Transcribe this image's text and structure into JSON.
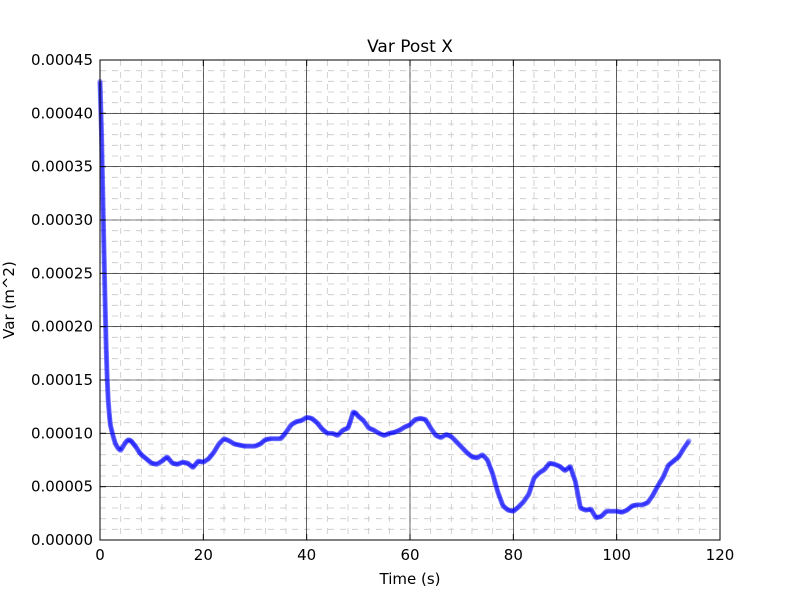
{
  "chart_data": {
    "type": "scatter",
    "title": "Var Post X",
    "xlabel": "Time (s)",
    "ylabel": "Var (m^2)",
    "xlim": [
      0,
      120
    ],
    "ylim": [
      0,
      0.00045
    ],
    "xticks": [
      0,
      20,
      40,
      60,
      80,
      100,
      120
    ],
    "xtick_labels": [
      "0",
      "20",
      "40",
      "60",
      "80",
      "100",
      "120"
    ],
    "yticks": [
      0,
      5e-05,
      0.0001,
      0.00015,
      0.0002,
      0.00025,
      0.0003,
      0.00035,
      0.0004,
      0.00045
    ],
    "ytick_labels": [
      "0.00000",
      "0.00005",
      "0.00010",
      "0.00015",
      "0.00020",
      "0.00025",
      "0.00030",
      "0.00035",
      "0.00040",
      "0.00045"
    ],
    "grid": true,
    "series": [
      {
        "color": "#0000ff",
        "points": [
          [
            0.0,
            0.00043
          ],
          [
            0.3,
            0.00038
          ],
          [
            0.6,
            0.00031
          ],
          [
            0.8,
            0.000265
          ],
          [
            1.0,
            0.00022
          ],
          [
            1.2,
            0.00018
          ],
          [
            1.4,
            0.00015
          ],
          [
            1.6,
            0.00013
          ],
          [
            1.8,
            0.000118
          ],
          [
            2.0,
            0.000108
          ],
          [
            2.5,
            9.8e-05
          ],
          [
            3.0,
            9e-05
          ],
          [
            3.5,
            8.6e-05
          ],
          [
            4.0,
            8.4e-05
          ],
          [
            4.5,
            8.8e-05
          ],
          [
            5.0,
            9.2e-05
          ],
          [
            5.5,
            9.4e-05
          ],
          [
            6.0,
            9.3e-05
          ],
          [
            6.5,
            9e-05
          ],
          [
            7.0,
            8.7e-05
          ],
          [
            7.5,
            8.3e-05
          ],
          [
            8.0,
            8e-05
          ],
          [
            8.5,
            7.8e-05
          ],
          [
            9.0,
            7.6e-05
          ],
          [
            9.5,
            7.4e-05
          ],
          [
            10.0,
            7.2e-05
          ],
          [
            11.0,
            7.1e-05
          ],
          [
            12.0,
            7.4e-05
          ],
          [
            13.0,
            7.8e-05
          ],
          [
            14.0,
            7.2e-05
          ],
          [
            15.0,
            7.1e-05
          ],
          [
            16.0,
            7.3e-05
          ],
          [
            17.0,
            7.2e-05
          ],
          [
            18.0,
            6.8e-05
          ],
          [
            19.0,
            7.4e-05
          ],
          [
            20.0,
            7.3e-05
          ],
          [
            21.0,
            7.6e-05
          ],
          [
            22.0,
            8.2e-05
          ],
          [
            23.0,
            9e-05
          ],
          [
            24.0,
            9.5e-05
          ],
          [
            25.0,
            9.3e-05
          ],
          [
            26.0,
            9e-05
          ],
          [
            27.0,
            8.9e-05
          ],
          [
            28.0,
            8.8e-05
          ],
          [
            29.0,
            8.8e-05
          ],
          [
            30.0,
            8.8e-05
          ],
          [
            31.0,
            9e-05
          ],
          [
            32.0,
            9.4e-05
          ],
          [
            33.0,
            9.5e-05
          ],
          [
            34.0,
            9.5e-05
          ],
          [
            35.0,
            9.5e-05
          ],
          [
            36.0,
            0.000101
          ],
          [
            37.0,
            0.000108
          ],
          [
            38.0,
            0.000111
          ],
          [
            39.0,
            0.000112
          ],
          [
            40.0,
            0.000115
          ],
          [
            41.0,
            0.000114
          ],
          [
            42.0,
            0.00011
          ],
          [
            43.0,
            0.000104
          ],
          [
            44.0,
            0.0001
          ],
          [
            45.0,
            0.0001
          ],
          [
            46.0,
            9.8e-05
          ],
          [
            47.0,
            0.000103
          ],
          [
            48.0,
            0.000105
          ],
          [
            48.5,
            0.000112
          ],
          [
            49.0,
            0.00012
          ],
          [
            49.5,
            0.000119
          ],
          [
            50.0,
            0.000116
          ],
          [
            51.0,
            0.000112
          ],
          [
            52.0,
            0.000105
          ],
          [
            53.0,
            0.000103
          ],
          [
            54.0,
            0.0001
          ],
          [
            55.0,
            9.8e-05
          ],
          [
            56.0,
            0.0001
          ],
          [
            57.0,
            0.000101
          ],
          [
            58.0,
            0.000103
          ],
          [
            59.0,
            0.000106
          ],
          [
            60.0,
            0.000108
          ],
          [
            61.0,
            0.000113
          ],
          [
            62.0,
            0.000114
          ],
          [
            63.0,
            0.000113
          ],
          [
            64.0,
            0.000105
          ],
          [
            65.0,
            9.8e-05
          ],
          [
            66.0,
            9.6e-05
          ],
          [
            67.0,
            9.9e-05
          ],
          [
            68.0,
            9.7e-05
          ],
          [
            69.0,
            9.2e-05
          ],
          [
            70.0,
            8.7e-05
          ],
          [
            71.0,
            8.2e-05
          ],
          [
            72.0,
            7.8e-05
          ],
          [
            73.0,
            7.7e-05
          ],
          [
            74.0,
            8e-05
          ],
          [
            75.0,
            7.5e-05
          ],
          [
            76.0,
            6.2e-05
          ],
          [
            77.0,
            4.5e-05
          ],
          [
            78.0,
            3.2e-05
          ],
          [
            79.0,
            2.8e-05
          ],
          [
            80.0,
            2.7e-05
          ],
          [
            81.0,
            3.1e-05
          ],
          [
            82.0,
            3.6e-05
          ],
          [
            83.0,
            4.3e-05
          ],
          [
            84.0,
            5.8e-05
          ],
          [
            85.0,
            6.3e-05
          ],
          [
            86.0,
            6.6e-05
          ],
          [
            87.0,
            7.2e-05
          ],
          [
            88.0,
            7.1e-05
          ],
          [
            89.0,
            6.9e-05
          ],
          [
            90.0,
            6.5e-05
          ],
          [
            91.0,
            6.9e-05
          ],
          [
            92.0,
            5.5e-05
          ],
          [
            93.0,
            3e-05
          ],
          [
            94.0,
            2.8e-05
          ],
          [
            95.0,
            2.9e-05
          ],
          [
            96.0,
            2.1e-05
          ],
          [
            97.0,
            2.2e-05
          ],
          [
            98.0,
            2.7e-05
          ],
          [
            99.0,
            2.7e-05
          ],
          [
            100.0,
            2.7e-05
          ],
          [
            101.0,
            2.6e-05
          ],
          [
            102.0,
            2.8e-05
          ],
          [
            103.0,
            3.2e-05
          ],
          [
            104.0,
            3.3e-05
          ],
          [
            105.0,
            3.3e-05
          ],
          [
            106.0,
            3.5e-05
          ],
          [
            107.0,
            4.2e-05
          ],
          [
            108.0,
            5.1e-05
          ],
          [
            109.0,
            5.9e-05
          ],
          [
            110.0,
            7e-05
          ],
          [
            111.0,
            7.4e-05
          ],
          [
            112.0,
            7.8e-05
          ],
          [
            113.0,
            8.6e-05
          ],
          [
            114.0,
            9.3e-05
          ]
        ]
      }
    ]
  }
}
